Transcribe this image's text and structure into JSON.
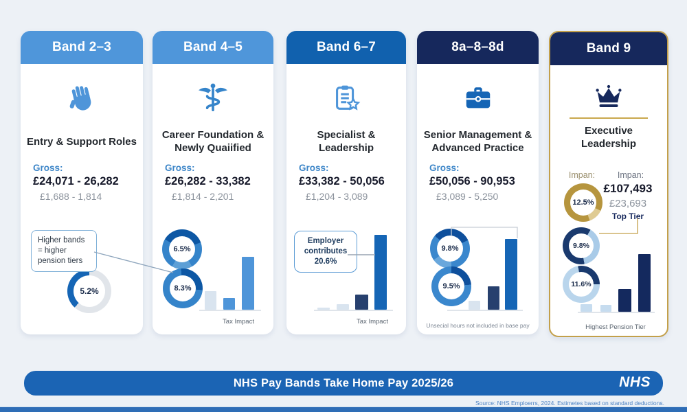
{
  "page": {
    "background": "#edf1f6",
    "banner": {
      "title": "NHS Pay Bands Take Home Pay 2025/26",
      "logo": "NHS",
      "color": "#1b64b4"
    },
    "source": "Source: NHS Emploerrs, 2024. Estimetes based on standard deductions."
  },
  "colors": {
    "header_light_blue": "#4f96da",
    "header_mid_blue": "#1161ae",
    "header_navy": "#16285c",
    "gold_accent": "#c3a04a",
    "banner_blue": "#1b64b4",
    "donut_blue": "#1565b5",
    "bar_light": "#d9e4ef",
    "bar_navy": "#14295e"
  },
  "bands": [
    {
      "header": "Band 2–3",
      "icon": "hand-icon",
      "role": "Entry & Support Roles",
      "gross_label": "Gross:",
      "gross": "£24,071 - 26,282",
      "monthly": "£1,688 - 1,814",
      "callout": "Higher bands = higher pension tiers"
    },
    {
      "header": "Band 4–5",
      "icon": "caduceus-icon",
      "role": "Career Foundation & Newly Quaiified",
      "gross_label": "Gross:",
      "gross": "£26,282 - 33,382",
      "monthly": "£1,814 - 2,201",
      "caption": "Tax Impact"
    },
    {
      "header": "Band 6–7",
      "icon": "clipboard-star-icon",
      "role": "Specialist & Leadership",
      "gross_label": "Gross:",
      "gross": "£33,382 - 50,056",
      "monthly": "£1,204 - 3,089",
      "callout": "Employer contributes 20.6%",
      "caption": "Tax Impact"
    },
    {
      "header": "8a–8–8d",
      "icon": "briefcase-icon",
      "role": "Senior Management & Advanced Practice",
      "gross_label": "Gross:",
      "gross": "£50,056 - 90,953",
      "monthly": "£3,089 - 5,250",
      "caption": "Unsecial hours not included in base pay"
    },
    {
      "header": "Band 9",
      "icon": "crown-icon",
      "role": "Executive Leadership",
      "label_left": "Impan:",
      "label_right": "Impan:",
      "gross": "£107,493",
      "monthly": "£23,693",
      "tier": "Top Tier",
      "caption": "Highest Pension Tier"
    }
  ],
  "chart_data": [
    {
      "band": "Band 2–3",
      "type": "pie",
      "donuts": [
        {
          "label": "5.2%",
          "value": 5.2
        }
      ]
    },
    {
      "band": "Band 4–5",
      "type": "bar",
      "donuts": [
        {
          "label": "6.5%",
          "value": 6.5
        },
        {
          "label": "8.3%",
          "value": 8.3
        }
      ],
      "bars": [
        27,
        17,
        77
      ],
      "caption": "Tax Impact"
    },
    {
      "band": "Band 6–7",
      "type": "bar",
      "bars": [
        3,
        8,
        22,
        109
      ],
      "annotation": "Employer contributes 20.6%",
      "caption": "Tax Impact"
    },
    {
      "band": "8a–8–8d",
      "type": "bar",
      "donuts": [
        {
          "label": "9.8%",
          "value": 9.8
        },
        {
          "label": "9.5%",
          "value": 9.5
        }
      ],
      "bars": [
        13,
        34,
        103
      ],
      "caption": "Unsecial hours not included in base pay"
    },
    {
      "band": "Band 9",
      "type": "bar",
      "donuts": [
        {
          "label": "12.5%",
          "value": 12.5
        },
        {
          "label": "9.8%",
          "value": 9.8
        },
        {
          "label": "11.6%",
          "value": 11.6
        }
      ],
      "bars": [
        11,
        10,
        33,
        84
      ],
      "caption": "Highest Pension Tier"
    }
  ]
}
